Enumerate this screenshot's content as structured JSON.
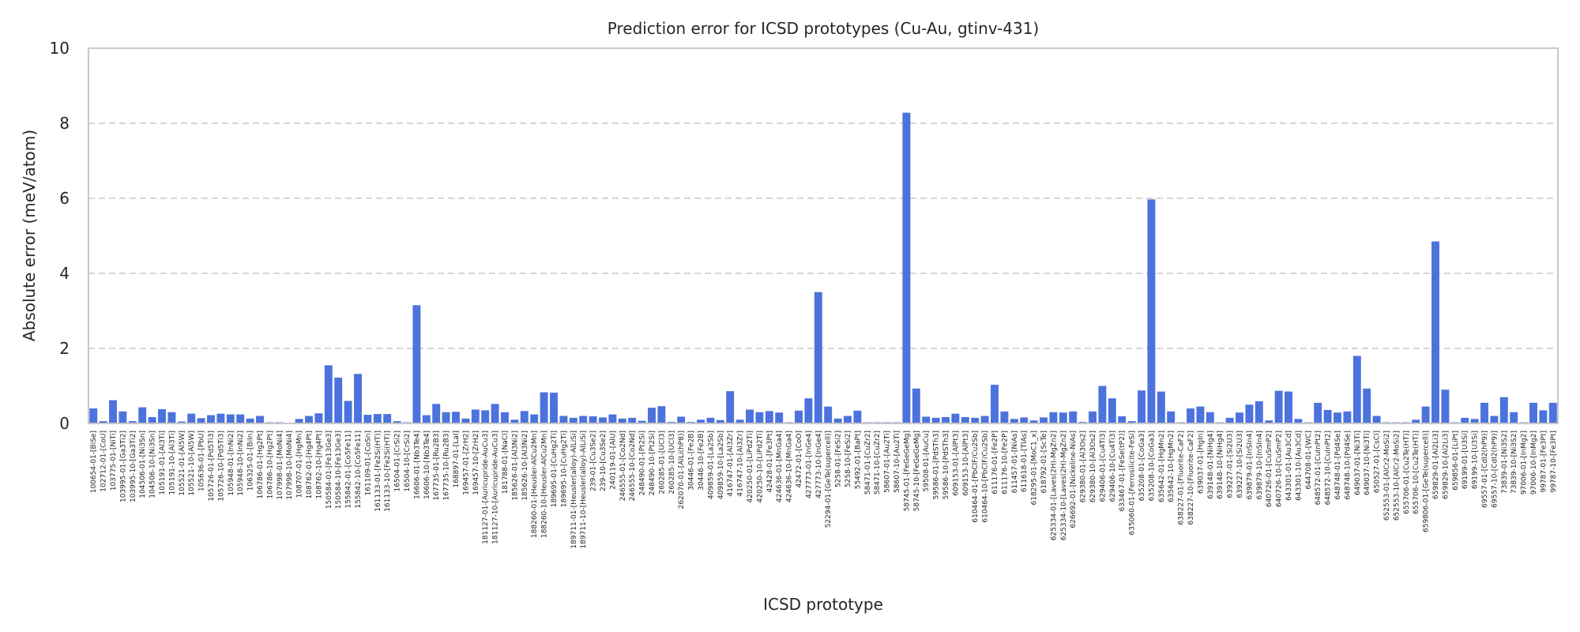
{
  "chart_data": {
    "type": "bar",
    "title": "Prediction error for ICSD prototypes (Cu-Au, gtinv-431)",
    "xlabel": "ICSD prototype",
    "ylabel": "Absolute error (meV/atom)",
    "ylim": [
      0,
      10
    ],
    "yticks": [
      0,
      2,
      4,
      6,
      8,
      10
    ],
    "grid": "y-dashed",
    "bar_color": "#4c72dd",
    "categories": [
      "100654-01-[BiSe]",
      "102712-01-[CoU]",
      "103775-01-[NiTi]",
      "103995-01-[Ga3Ti2]",
      "103995-10-[Ga3Ti2]",
      "104506-01-[Ni3Sn]",
      "104506-10-[Ni3Sn]",
      "105191-01-[Al3Ti]",
      "105191-10-[Al3Ti]",
      "105521-01-[Al5W]",
      "105521-10-[Al5W]",
      "105636-01-[PbU]",
      "105726-01-[Pd5Ti3]",
      "105726-10-[Pd5Ti3]",
      "105948-01-[InNi2]",
      "105948-10-[InNi2]",
      "106325-01-[BiIn]",
      "106786-01-[Hg2Pt]",
      "106786-10-[Hg2Pt]",
      "107998-01-[MoNi4]",
      "107998-10-[MoNi4]",
      "108707-01-[HgMn]",
      "108762-01-[Hg4Pt]",
      "108762-10-[Hg4Pt]",
      "150584-01-[Fe13Ge3]",
      "150584-10-[Fe13Ge3]",
      "155842-01-[Co5Fe11]",
      "155842-10-[Co5Fe11]",
      "161109-01-[CoSn]",
      "161133-01-[Fe2Si(HT)]",
      "161133-10-[Fe2Si(HT)]",
      "16504-01-[CrSi2]",
      "16504-10-[CrSi2]",
      "16606-01-[Nb3Te4]",
      "16606-10-[Nb3Te4]",
      "167735-01-[Ru2B3]",
      "167735-10-[Ru2B3]",
      "168897-01-[LaI]",
      "169457-01-[ZrH2]",
      "169457-10-[ZrH2]",
      "181127-01-[Auricupride-AuCu3]",
      "181127-10-[Auricupride-AuCu3]",
      "181788-01-[NaCl]",
      "185626-01-[Al3Ni2]",
      "185626-10-[Al3Ni2]",
      "188260-01-[Heusler-AlCu2Mn]",
      "188260-10-[Heusler-AlCu2Mn]",
      "189695-01-[CuHg2Ti]",
      "189695-10-[CuHg2Ti]",
      "189711-01-[Heusler(alloy)-AlLiSi]",
      "189711-10-[Heusler(alloy)-AlLiSi]",
      "239-01-[Cu3Se2]",
      "239-10-[Cu3Se2]",
      "240119-01-[AlU]",
      "246555-01-[Co2Nd]",
      "246555-10-[Co2Nd]",
      "248490-01-[Pt2Si]",
      "248490-10-[Pt2Si]",
      "260285-01-[UCl3]",
      "260285-10-[UCl3]",
      "262070-01-[AlLi(hP8)]",
      "30446-01-[Fe2B]",
      "30446-10-[Fe2B]",
      "409859-01-[La2Sb]",
      "409859-10-[La2Sb]",
      "416747-01-[Al3Zr]",
      "416747-10-[Al3Zr]",
      "420250-01-[LiPd2Ti]",
      "420250-10-[LiPd2Ti]",
      "42428-01-[Fe3Pt]",
      "424636-01-[MnGa4]",
      "424636-10-[MnGa4]",
      "42472-01-[CoO]",
      "427773-01-[InGe4]",
      "427773-10-[InGe4]",
      "52294-01-[GeTe(supercell)]",
      "5258-01-[FeSi2]",
      "5258-10-[FeSi2]",
      "55492-01-[BaPt]",
      "58471-01-[CuZr2]",
      "58471-10-[CuZr2]",
      "58607-01-[Au2Ti]",
      "58607-10-[Au2Ti]",
      "58745-01-[FeGeGeMg]",
      "58745-10-[FeGeGeMg]",
      "59508-01-[AuCu]",
      "59586-01-[PdSTh3]",
      "59586-10-[PdSTh3]",
      "609153-01-[AlPt3]",
      "609153-10-[AlPt3]",
      "610464-01-[PbClF/Cu2Sb]",
      "610464-10-[PbClF/Cu2Sb]",
      "611176-01-[Fe2P]",
      "611176-10-[Fe2P]",
      "611457-01-[NiAs]",
      "611618-01-[TlAs]",
      "618295-01-[MoC1_x]",
      "618792-01-[ScTe]",
      "625334-01-[Laves(2H)-MgZn2]",
      "625334-10-[Laves(2H)-MgZn2]",
      "626692-01-[Nickeline-NiAs]",
      "629380-01-[Al3Os2]",
      "629380-10-[Al3Os2]",
      "629406-01-[Cu4Ti3]",
      "629406-10-[Cu4Ti3]",
      "633467-01-[FeSe(tP2)]",
      "635060-01-[Ferrosilicite-FeSi]",
      "635208-01-[CoGa3]",
      "635208-10-[CoGa3]",
      "635642-01-[HgMn2]",
      "635642-10-[HgMn2]",
      "638227-01-[Fluorite-CaF2]",
      "638227-10-[Fluorite-CaF2]",
      "639037-01-[HgIn]",
      "639148-01-[NiHg4]",
      "639148-10-[NiHg4]",
      "639227-01-[Si2U3]",
      "639227-10-[Si2U3]",
      "639879-01-[InSIn4]",
      "639879-10-[InSIn4]",
      "640726-01-[CuSmP2]",
      "640726-10-[CuSmP2]",
      "643301-01-[Au3Cd]",
      "643301-10-[Au3Cd]",
      "644708-01-[WC]",
      "648572-01-[CuInPt2]",
      "648572-10-[CuInPt2]",
      "648748-01-[Pd4Se]",
      "648748-10-[Pd4Se]",
      "649037-01-[Ni3Ti]",
      "649037-10-[Ni3Ti]",
      "650527-01-[CsCl]",
      "652553-01-[AlCr2-MoSi2]",
      "652553-10-[AlCr2-MoSi2]",
      "655706-01-[Cu2Te(HT)]",
      "655706-10-[Cu2Te(HT)]",
      "659806-01-[GeTe(supercell)]",
      "659829-01-[Al2Li3]",
      "659829-10-[Al2Li3]",
      "659856-01-[LiPt]",
      "69199-01-[U3Si]",
      "69199-10-[U3Si]",
      "69557-01-[CdI2(hP9)]",
      "69557-10-[CdI2(hP9)]",
      "73839-01-[Ni3S2]",
      "73839-10-[Ni3S2]",
      "97006-01-[InMg2]",
      "97006-10-[InMg2]",
      "99787-01-[Fe3Pt]",
      "99787-10-[Fe3Pt]"
    ],
    "values": [
      0.4,
      0.06,
      0.62,
      0.32,
      0.06,
      0.43,
      0.17,
      0.38,
      0.3,
      0.05,
      0.26,
      0.14,
      0.22,
      0.26,
      0.24,
      0.24,
      0.13,
      0.2,
      0.03,
      0.03,
      0.02,
      0.12,
      0.2,
      0.27,
      1.55,
      1.22,
      0.6,
      1.32,
      0.23,
      0.25,
      0.25,
      0.06,
      0.03,
      3.15,
      0.22,
      0.52,
      0.3,
      0.31,
      0.13,
      0.37,
      0.35,
      0.52,
      0.3,
      0.1,
      0.33,
      0.24,
      0.83,
      0.82,
      0.2,
      0.15,
      0.2,
      0.19,
      0.16,
      0.24,
      0.13,
      0.15,
      0.07,
      0.42,
      0.46,
      0.04,
      0.18,
      0.04,
      0.1,
      0.15,
      0.09,
      0.86,
      0.1,
      0.37,
      0.3,
      0.33,
      0.29,
      0.03,
      0.34,
      0.67,
      3.5,
      0.45,
      0.13,
      0.2,
      0.34,
      0.03,
      0.03,
      0.03,
      0.03,
      8.28,
      0.93,
      0.18,
      0.15,
      0.17,
      0.26,
      0.17,
      0.15,
      0.2,
      1.03,
      0.32,
      0.12,
      0.16,
      0.08,
      0.16,
      0.3,
      0.29,
      0.32,
      0.04,
      0.32,
      1.0,
      0.67,
      0.19,
      0.06,
      0.88,
      5.97,
      0.85,
      0.32,
      0.03,
      0.4,
      0.45,
      0.3,
      0.03,
      0.15,
      0.29,
      0.5,
      0.59,
      0.08,
      0.87,
      0.85,
      0.12,
      0.03,
      0.55,
      0.36,
      0.29,
      0.32,
      1.8,
      0.93,
      0.2,
      0.03,
      0.03,
      0.03,
      0.1,
      0.45,
      4.85,
      0.9,
      0.03,
      0.15,
      0.12,
      0.55,
      0.2,
      0.7,
      0.3,
      0.03,
      0.55,
      0.35,
      0.55
    ]
  }
}
